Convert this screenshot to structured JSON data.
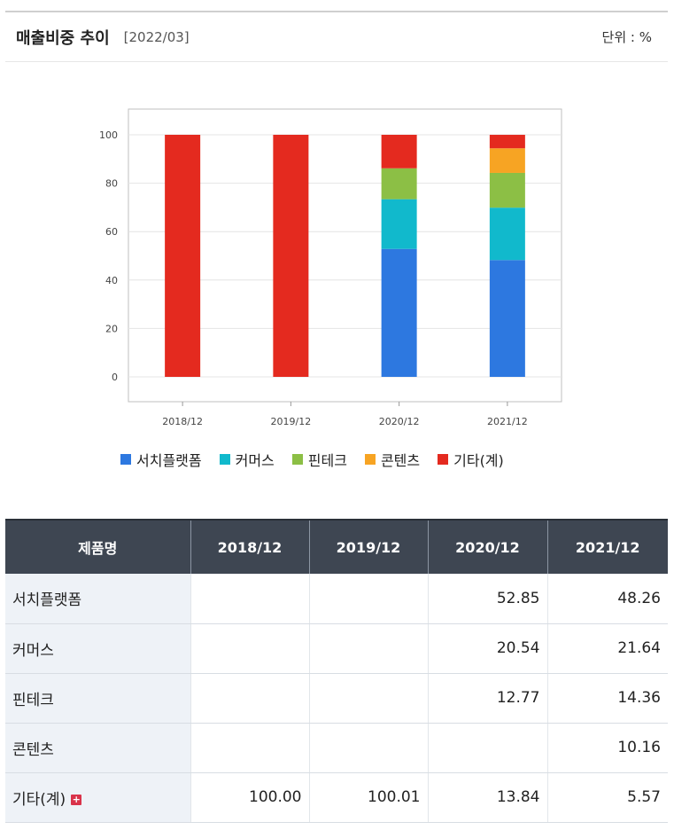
{
  "header": {
    "title": "매출비중 추이",
    "date": "[2022/03]",
    "unit": "단위 : %"
  },
  "colors": {
    "series0": "#2d78e0",
    "series1": "#11b9cc",
    "series2": "#8cbf45",
    "series3": "#f7a423",
    "series4": "#e42a1f"
  },
  "chart_data": {
    "type": "bar",
    "stacked": true,
    "categories": [
      "2018/12",
      "2019/12",
      "2020/12",
      "2021/12"
    ],
    "ylim": [
      0,
      100
    ],
    "yticks": [
      "100",
      "80",
      "60",
      "40",
      "20",
      "0"
    ],
    "grid": true,
    "legend_position": "bottom",
    "series": [
      {
        "name": "서치플랫폼",
        "values": [
          0,
          0,
          52.85,
          48.26
        ]
      },
      {
        "name": "커머스",
        "values": [
          0,
          0,
          20.54,
          21.64
        ]
      },
      {
        "name": "핀테크",
        "values": [
          0,
          0,
          12.77,
          14.36
        ]
      },
      {
        "name": "콘텐츠",
        "values": [
          0,
          0,
          0,
          10.16
        ]
      },
      {
        "name": "기타(계)",
        "values": [
          100.0,
          100.01,
          13.84,
          5.57
        ]
      }
    ]
  },
  "table": {
    "header": [
      "제품명",
      "2018/12",
      "2019/12",
      "2020/12",
      "2021/12"
    ],
    "rows": [
      {
        "name": "서치플랫폼",
        "values": [
          "",
          "",
          "52.85",
          "48.26"
        ]
      },
      {
        "name": "커머스",
        "values": [
          "",
          "",
          "20.54",
          "21.64"
        ]
      },
      {
        "name": "핀테크",
        "values": [
          "",
          "",
          "12.77",
          "14.36"
        ]
      },
      {
        "name": "콘텐츠",
        "values": [
          "",
          "",
          "",
          "10.16"
        ]
      },
      {
        "name": "기타(계)",
        "values": [
          "100.00",
          "100.01",
          "13.84",
          "5.57"
        ]
      }
    ]
  }
}
